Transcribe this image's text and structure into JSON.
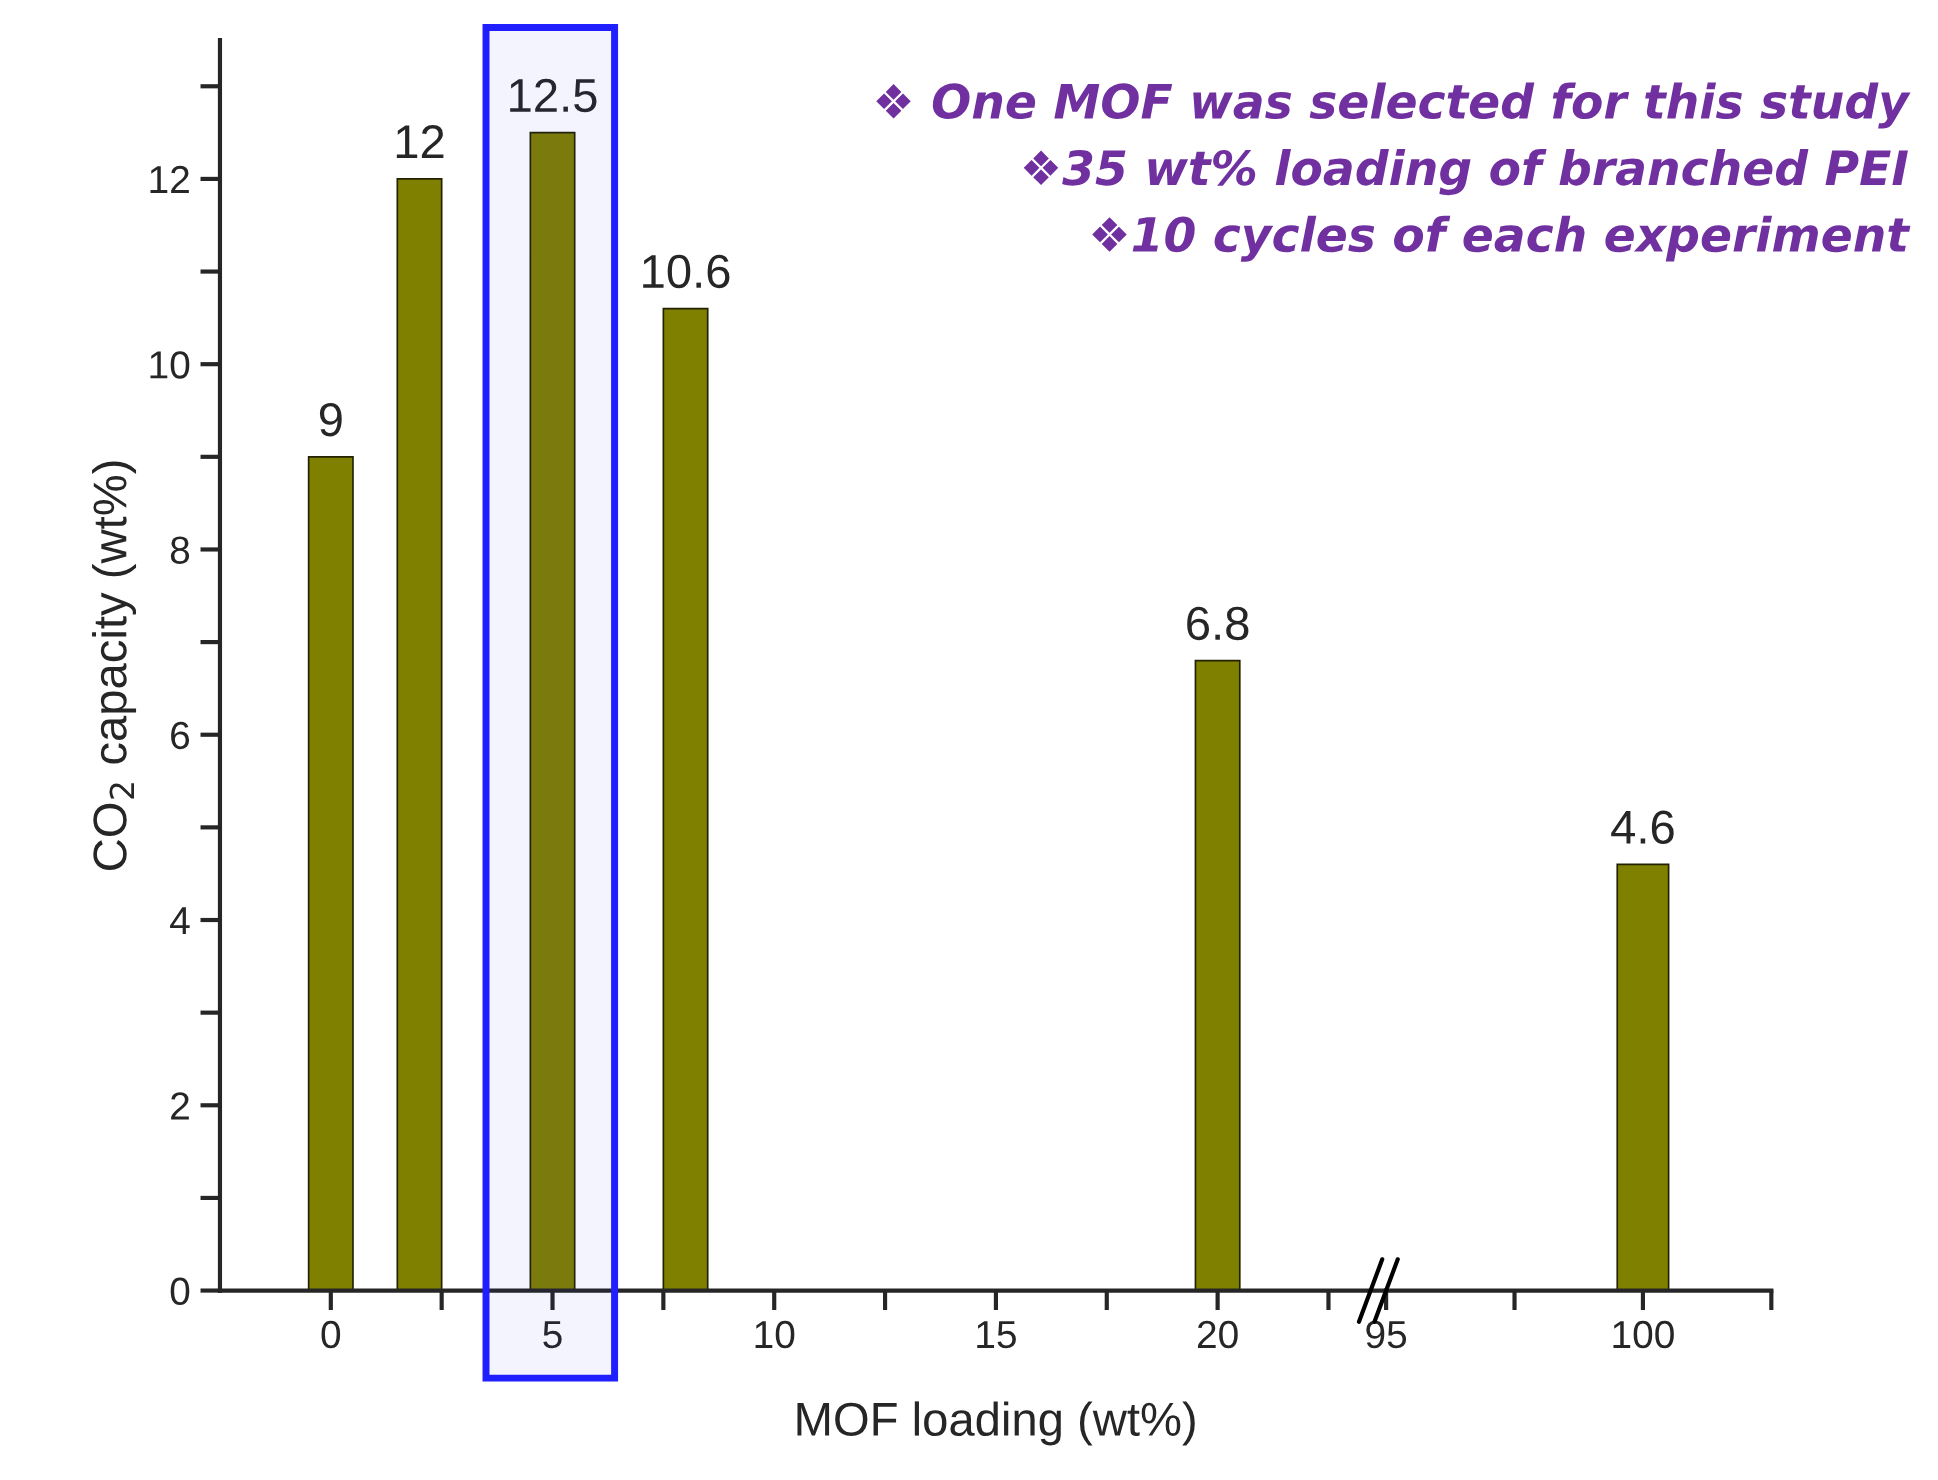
{
  "chart_data": [
    {
      "type": "bar",
      "ylabel": "CO$_{2}$ capacity (wt%)",
      "xlabel": "MOF loading (wt%)",
      "x": [
        0,
        2,
        5,
        8,
        20
      ],
      "values": [
        9,
        12,
        12.5,
        10.6,
        6.8
      ],
      "color": "#7f7f00",
      "data_labels": true,
      "xlim": [
        -2.5,
        23.8
      ],
      "xticks": [
        0,
        {
          "value": 2.5,
          "label": null
        },
        5,
        {
          "value": 7.5,
          "label": null
        },
        10,
        {
          "value": 12.5,
          "label": null
        },
        15,
        {
          "value": 17.5,
          "label": null
        },
        20,
        {
          "value": 22.5,
          "label": null
        }
      ],
      "ylim": [
        0,
        13.5
      ],
      "yticks": [
        0,
        {
          "value": 1,
          "label": null
        },
        2,
        {
          "value": 3,
          "label": null
        },
        4,
        {
          "value": 5,
          "label": null
        },
        6,
        {
          "value": 7,
          "label": null
        },
        8,
        {
          "value": 9,
          "label": null
        },
        10,
        {
          "value": 11,
          "label": null
        },
        12,
        {
          "value": 13,
          "label": null
        }
      ],
      "bands": [
        {
          "axis": "x",
          "from": 3.5,
          "to": 6.4,
          "color": "#1f1fff"
        }
      ],
      "annotations": [
        "❖ One MOF was selected for this study",
        "❖35 wt% loading of branched PEI",
        "❖10 cycles of each experiment"
      ]
    },
    {
      "type": "bar",
      "x": [
        100
      ],
      "values": [
        4.6
      ],
      "color": "#7f7f00",
      "data_labels": true,
      "xlim": [
        95,
        102.5
      ],
      "xticks": [
        95,
        {
          "value": 97.5,
          "label": null
        },
        100,
        {
          "value": 102.5,
          "label": null
        }
      ],
      "tick_labels": "x"
    }
  ]
}
